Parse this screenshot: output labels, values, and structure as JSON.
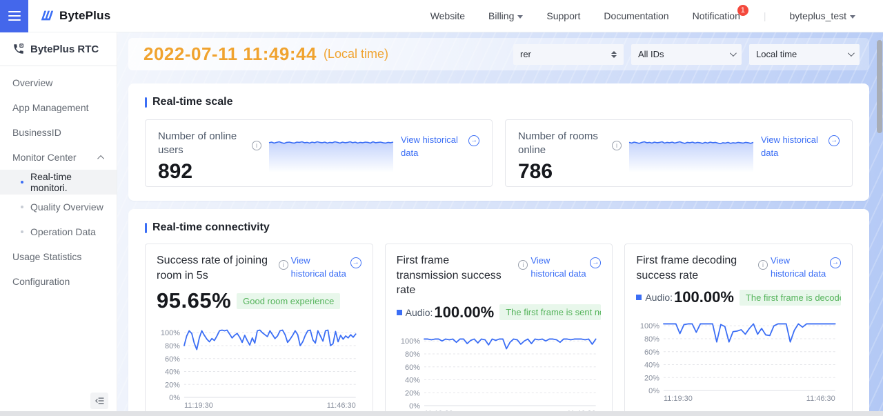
{
  "header": {
    "logo": "BytePlus",
    "nav": {
      "website": "Website",
      "billing": "Billing",
      "support": "Support",
      "documentation": "Documentation",
      "notification": "Notification",
      "notification_badge": "1",
      "account": "byteplus_test"
    }
  },
  "sidebar": {
    "product": "BytePlus RTC",
    "overview": "Overview",
    "app_management": "App Management",
    "businessid": "BusinessID",
    "monitor_center": "Monitor Center",
    "realtime_monitoring": "Real-time monitori.",
    "quality_overview": "Quality Overview",
    "operation_data": "Operation Data",
    "usage_statistics": "Usage Statistics",
    "configuration": "Configuration"
  },
  "toolbar": {
    "timestamp": "2022-07-11 11:49:44",
    "timezone_note": "(Local time)",
    "business_select": "rer",
    "ids_select": "All IDs",
    "time_select": "Local time"
  },
  "scale_section": {
    "title": "Real-time scale",
    "cards": [
      {
        "label": "Number of online users",
        "value": "892",
        "link": "View historical data"
      },
      {
        "label": "Number of rooms online",
        "value": "786",
        "link": "View historical data"
      }
    ]
  },
  "connectivity_section": {
    "title": "Real-time connectivity",
    "cards": [
      {
        "title": "Success rate of joining room in 5s",
        "value": "95.65%",
        "badge": "Good room experience",
        "link": "View historical data"
      },
      {
        "title": "First frame transmission success rate",
        "metric_label": "Audio:",
        "value": "100.00%",
        "badge": "The first frame is sent normally",
        "link": "View historical data"
      },
      {
        "title": "First frame decoding success rate",
        "metric_label": "Audio:",
        "value": "100.00%",
        "badge": "The first frame is decoded normally",
        "link": "View historical data"
      }
    ]
  },
  "colors": {
    "accent_blue": "#3b6ef5",
    "brand_square": "#4467eb",
    "timestamp_orange": "#f0a32f",
    "badge_green_bg": "#e8f7eb",
    "badge_green_text": "#54b35a",
    "notification_red": "#f4493d",
    "chart_line": "#3b6ef5"
  },
  "chart_data": [
    {
      "type": "sparkline",
      "title": "Number of online users trend",
      "ylim": [
        0,
        100
      ],
      "values": [
        85,
        87,
        84,
        86,
        88,
        85,
        83,
        86,
        87,
        85,
        84,
        87,
        86,
        88,
        85,
        86,
        84,
        87,
        85,
        88,
        86,
        85,
        87,
        84,
        86,
        85,
        88,
        86,
        84,
        87,
        85,
        86,
        88,
        85,
        87,
        84,
        86,
        85,
        87,
        86,
        84,
        88,
        85,
        86,
        87,
        85,
        84,
        86,
        85,
        87
      ]
    },
    {
      "type": "sparkline",
      "title": "Number of rooms online trend",
      "ylim": [
        0,
        100
      ],
      "values": [
        86,
        84,
        87,
        85,
        83,
        86,
        88,
        85,
        86,
        84,
        87,
        85,
        86,
        88,
        84,
        86,
        85,
        87,
        84,
        86,
        88,
        85,
        83,
        86,
        85,
        87,
        84,
        86,
        85,
        83,
        86,
        84,
        87,
        85,
        86,
        84,
        82,
        85,
        84,
        86,
        83,
        85,
        84,
        86,
        85,
        84,
        86,
        85,
        83,
        86
      ]
    },
    {
      "type": "line",
      "title": "Success rate of joining room in 5s",
      "ylim": [
        0,
        112
      ],
      "yticks": [
        "0%",
        "20%",
        "40%",
        "60%",
        "80%",
        "100%"
      ],
      "x_labels": [
        "11:19:30",
        "11:46:30"
      ],
      "grid": "dashed",
      "values": [
        80,
        95,
        103,
        99,
        84,
        74,
        92,
        103,
        96,
        90,
        86,
        91,
        88,
        95,
        103,
        104,
        103,
        104,
        98,
        92,
        96,
        99,
        93,
        85,
        96,
        88,
        81,
        92,
        84,
        103,
        104,
        100,
        97,
        94,
        103,
        97,
        91,
        95,
        103,
        104,
        97,
        85,
        90,
        96,
        103,
        97,
        80,
        86,
        96,
        103,
        104,
        89,
        84,
        103,
        95,
        87,
        103,
        104,
        80,
        83,
        102,
        86,
        96,
        90,
        95,
        92,
        97,
        93,
        98
      ]
    },
    {
      "type": "line",
      "title": "First frame transmission success rate (Audio)",
      "ylim": [
        0,
        112
      ],
      "yticks": [
        "0%",
        "20%",
        "40%",
        "60%",
        "80%",
        "100%"
      ],
      "x_labels": [
        "11:19:30",
        "11:46:30"
      ],
      "grid": "dashed",
      "values": [
        103,
        103,
        102,
        103,
        103,
        100,
        103,
        102,
        103,
        98,
        103,
        103,
        96,
        101,
        103,
        97,
        103,
        102,
        94,
        103,
        101,
        103,
        103,
        88,
        98,
        103,
        102,
        95,
        100,
        103,
        96,
        103,
        102,
        103,
        100,
        103,
        103,
        102,
        98,
        103,
        103,
        102,
        103,
        103,
        103,
        102,
        103,
        95,
        103
      ]
    },
    {
      "type": "line",
      "title": "First frame decoding success rate (Audio)",
      "ylim": [
        0,
        112
      ],
      "yticks": [
        "0%",
        "20%",
        "40%",
        "60%",
        "80%",
        "100%"
      ],
      "x_labels": [
        "11:19:30",
        "11:46:30"
      ],
      "grid": "dashed",
      "values": [
        103,
        103,
        103,
        103,
        88,
        102,
        103,
        103,
        90,
        103,
        103,
        103,
        103,
        75,
        102,
        99,
        75,
        91,
        92,
        94,
        87,
        96,
        103,
        87,
        96,
        86,
        85,
        100,
        103,
        103,
        103,
        75,
        93,
        103,
        98,
        103,
        103,
        103,
        103,
        103,
        103,
        103,
        103
      ]
    }
  ]
}
